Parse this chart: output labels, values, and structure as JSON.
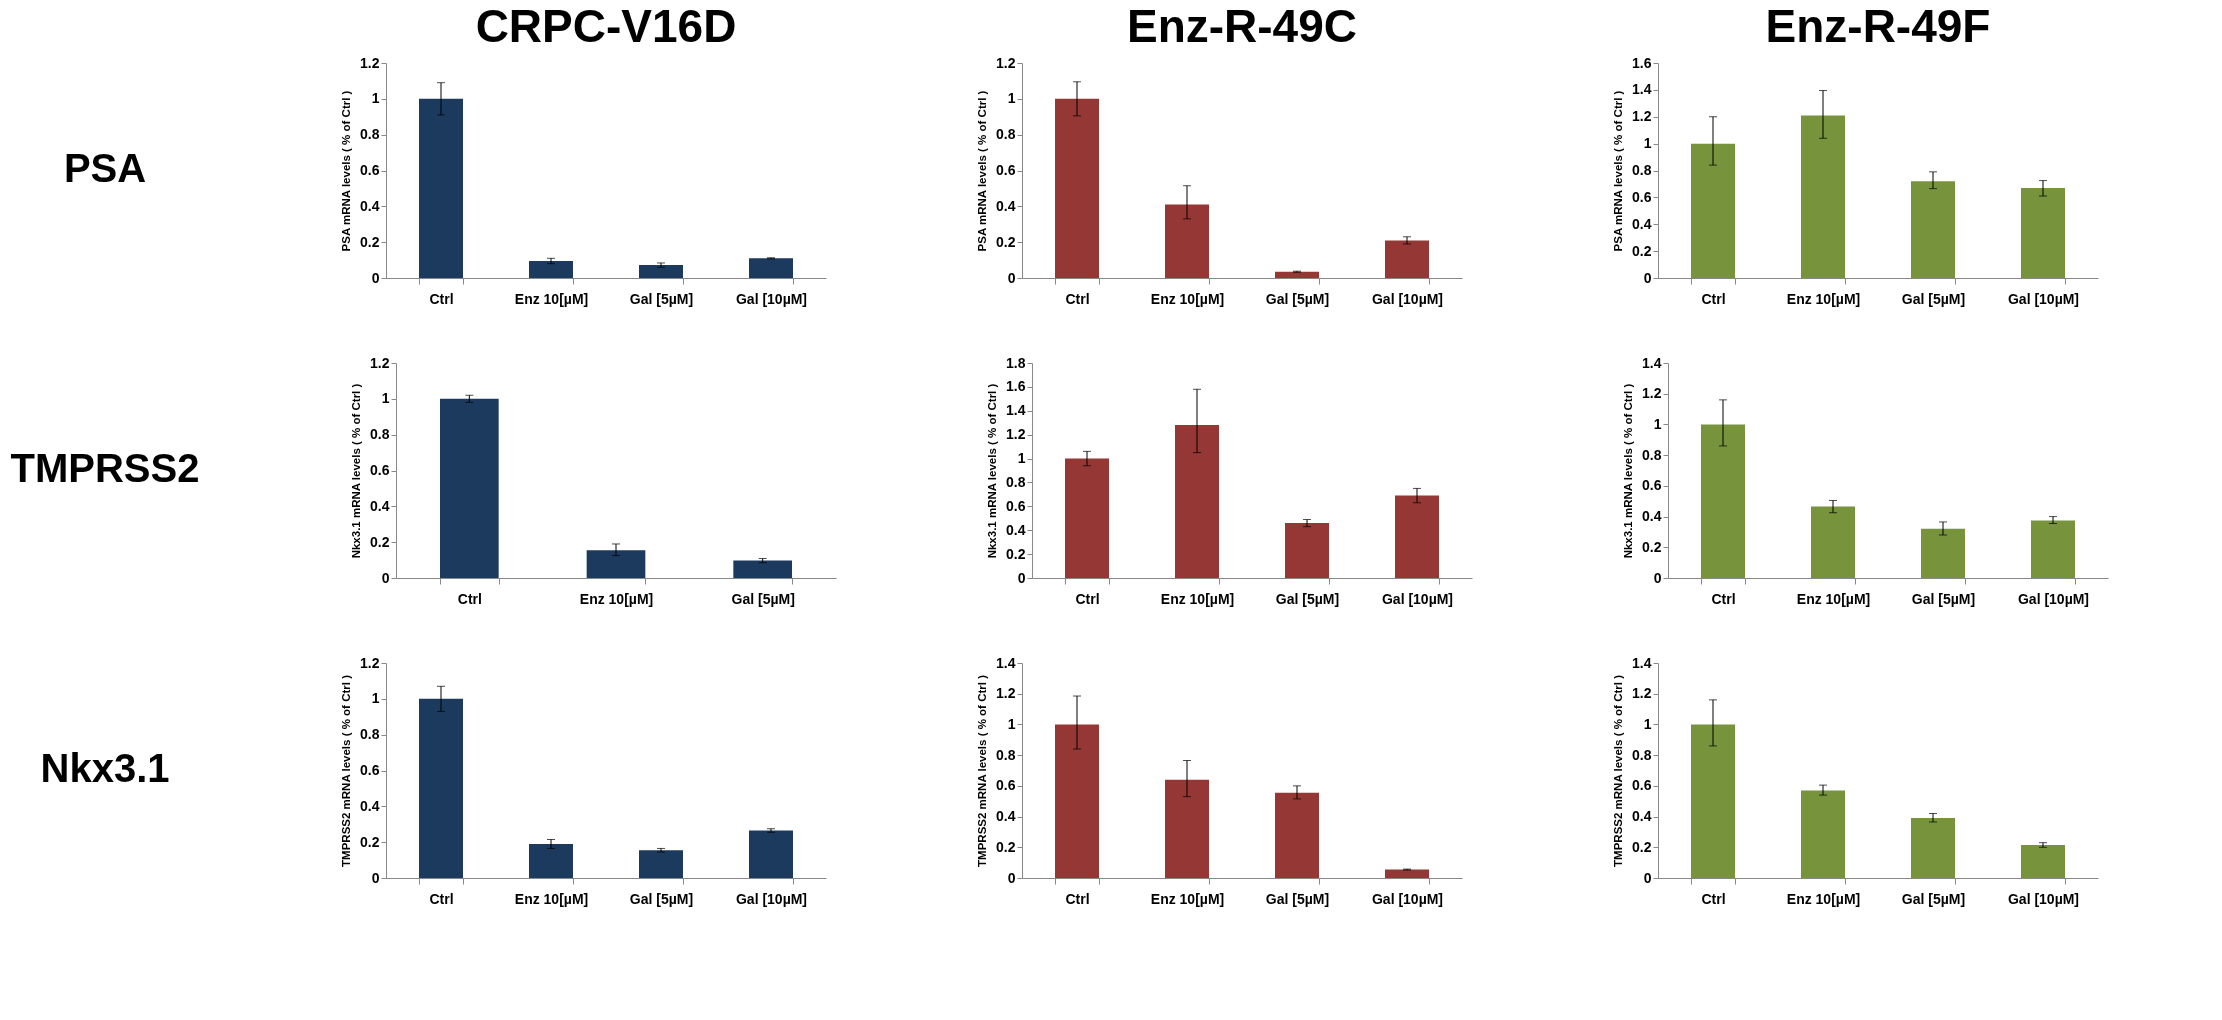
{
  "chart_data": [
    {
      "type": "bar",
      "title": "CRPC-V16D",
      "annotations": [
        "PSA"
      ],
      "ylabel": "PSA mRNA levels ( % of Ctrl )",
      "categories": [
        "Ctrl",
        "Enz 10[µM]",
        "Gal [5µM]",
        "Gal [10µM]"
      ],
      "values": [
        1,
        0.095,
        0.072,
        0.11
      ],
      "errors": [
        0.09,
        0.015,
        0.012,
        0.003
      ],
      "color": "#1b3a5e",
      "ylim": [
        0,
        1.2
      ],
      "yticks": [
        0,
        0.2,
        0.4,
        0.6,
        0.8,
        1,
        1.2
      ]
    },
    {
      "type": "bar",
      "title": "Enz-R-49C",
      "ylabel": "PSA mRNA levels ( % of Ctrl )",
      "categories": [
        "Ctrl",
        "Enz 10[µM]",
        "Gal [5µM]",
        "Gal [10µM]"
      ],
      "values": [
        1,
        0.41,
        0.035,
        0.21
      ],
      "errors": [
        0.095,
        [
          0.33,
          0.515
        ],
        0.003,
        0.02
      ],
      "color": "#953735",
      "ylim": [
        0,
        1.2
      ],
      "yticks": [
        0,
        0.2,
        0.4,
        0.6,
        0.8,
        1,
        1.2
      ]
    },
    {
      "type": "bar",
      "title": "Enz-R-49F",
      "ylabel": "PSA mRNA levels ( % of Ctrl )",
      "categories": [
        "Ctrl",
        "Enz 10[µM]",
        "Gal [5µM]",
        "Gal [10µM]"
      ],
      "values": [
        1,
        1.21,
        0.72,
        0.67
      ],
      "errors": [
        [
          0.84,
          1.2
        ],
        [
          1.04,
          1.395
        ],
        [
          0.665,
          0.79
        ],
        [
          0.61,
          0.725
        ]
      ],
      "color": "#77933c",
      "ylim": [
        0,
        1.6
      ],
      "yticks": [
        0,
        0.2,
        0.4,
        0.6,
        0.8,
        1,
        1.2,
        1.4,
        1.6
      ]
    },
    {
      "type": "bar",
      "annotations": [
        "TMPRSS2"
      ],
      "ylabel": "Nkx3.1 mRNA levels ( % of Ctrl )",
      "categories": [
        "Ctrl",
        "Enz 10[µM]",
        "Gal [5µM]"
      ],
      "values": [
        1,
        0.155,
        0.097
      ],
      "errors": [
        0.02,
        [
          0.125,
          0.19
        ],
        0.012
      ],
      "color": "#1b3a5e",
      "ylim": [
        0,
        1.2
      ],
      "yticks": [
        0,
        0.2,
        0.4,
        0.6,
        0.8,
        1,
        1.2
      ]
    },
    {
      "type": "bar",
      "ylabel": "Nkx3.1 mRNA levels ( % of Ctrl )",
      "categories": [
        "Ctrl",
        "Enz 10[µM]",
        "Gal [5µM]",
        "Gal [10µM]"
      ],
      "values": [
        1,
        1.28,
        0.46,
        0.69
      ],
      "errors": [
        0.06,
        [
          1.05,
          1.58
        ],
        0.03,
        0.06
      ],
      "color": "#953735",
      "ylim": [
        0,
        1.8
      ],
      "yticks": [
        0,
        0.2,
        0.4,
        0.6,
        0.8,
        1,
        1.2,
        1.4,
        1.6,
        1.8
      ]
    },
    {
      "type": "bar",
      "ylabel": "Nkx3.1 mRNA levels ( % of Ctrl )",
      "categories": [
        "Ctrl",
        "Enz 10[µM]",
        "Gal [5µM]",
        "Gal [10µM]"
      ],
      "values": [
        1,
        0.465,
        0.32,
        0.375
      ],
      "errors": [
        [
          0.86,
          1.16
        ],
        0.04,
        [
          0.28,
          0.365
        ],
        [
          0.355,
          0.4
        ]
      ],
      "color": "#77933c",
      "ylim": [
        0,
        1.4
      ],
      "yticks": [
        0,
        0.2,
        0.4,
        0.6,
        0.8,
        1,
        1.2,
        1.4
      ]
    },
    {
      "type": "bar",
      "annotations": [
        "Nkx3.1"
      ],
      "ylabel": "TMPRSS2 mRNA levels ( % of Ctrl )",
      "categories": [
        "Ctrl",
        "Enz 10[µM]",
        "Gal [5µM]",
        "Gal [10µM]"
      ],
      "values": [
        1,
        0.19,
        0.155,
        0.265
      ],
      "errors": [
        0.07,
        0.025,
        0.01,
        0.01
      ],
      "color": "#1b3a5e",
      "ylim": [
        0,
        1.2
      ],
      "yticks": [
        0,
        0.2,
        0.4,
        0.6,
        0.8,
        1,
        1.2
      ]
    },
    {
      "type": "bar",
      "ylabel": "TMPRSS2 mRNA levels ( % of Ctrl )",
      "categories": [
        "Ctrl",
        "Enz 10[µM]",
        "Gal [5µM]",
        "Gal [10µM]"
      ],
      "values": [
        1,
        0.64,
        0.555,
        0.055
      ],
      "errors": [
        [
          0.84,
          1.185
        ],
        [
          0.53,
          0.765
        ],
        [
          0.515,
          0.6
        ],
        0.003
      ],
      "color": "#953735",
      "ylim": [
        0,
        1.4
      ],
      "yticks": [
        0,
        0.2,
        0.4,
        0.6,
        0.8,
        1,
        1.2,
        1.4
      ]
    },
    {
      "type": "bar",
      "ylabel": "TMPRSS2 mRNA levels ( % of Ctrl )",
      "categories": [
        "Ctrl",
        "Enz 10[µM]",
        "Gal [5µM]",
        "Gal [10µM]"
      ],
      "values": [
        1,
        0.57,
        0.39,
        0.215
      ],
      "errors": [
        [
          0.86,
          1.16
        ],
        [
          0.54,
          0.605
        ],
        [
          0.365,
          0.42
        ],
        [
          0.2,
          0.23
        ]
      ],
      "color": "#77933c",
      "ylim": [
        0,
        1.4
      ],
      "yticks": [
        0,
        0.2,
        0.4,
        0.6,
        0.8,
        1,
        1.2,
        1.4
      ]
    }
  ]
}
